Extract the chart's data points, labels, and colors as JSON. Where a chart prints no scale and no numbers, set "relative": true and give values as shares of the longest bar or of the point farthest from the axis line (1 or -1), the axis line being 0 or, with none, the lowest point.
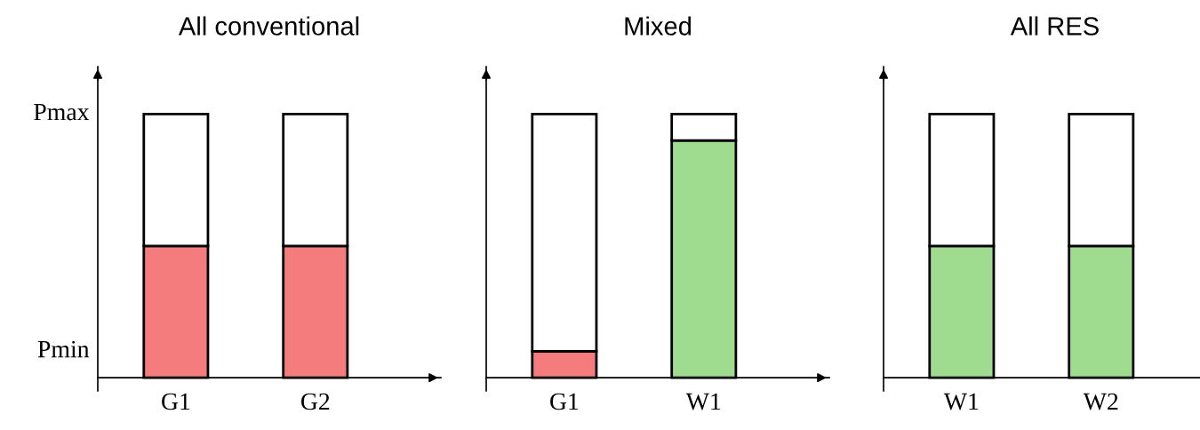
{
  "chart_data": [
    {
      "type": "bar",
      "title": "All conventional",
      "categories": [
        "G1",
        "G2"
      ],
      "relative": true,
      "stacked": true,
      "series": [
        {
          "colors": [
            "#f47c7c",
            "#f47c7c"
          ],
          "values": [
            0.5,
            0.5
          ]
        },
        {
          "color": "#ffffff",
          "values": [
            0.5,
            0.5
          ]
        }
      ],
      "annotations": [
        "Pmax",
        "Pmin"
      ]
    },
    {
      "type": "bar",
      "title": "Mixed",
      "categories": [
        "G1",
        "W1"
      ],
      "relative": true,
      "stacked": true,
      "series": [
        {
          "colors": [
            "#f47c7c",
            "#a0dc90"
          ],
          "values": [
            0.1,
            0.9
          ]
        },
        {
          "color": "#ffffff",
          "values": [
            0.9,
            0.1
          ]
        }
      ]
    },
    {
      "type": "bar",
      "title": "All RES",
      "categories": [
        "W1",
        "W2"
      ],
      "relative": true,
      "stacked": true,
      "series": [
        {
          "colors": [
            "#a0dc90",
            "#a0dc90"
          ],
          "values": [
            0.5,
            0.5
          ]
        },
        {
          "color": "#ffffff",
          "values": [
            0.5,
            0.5
          ]
        }
      ]
    }
  ]
}
